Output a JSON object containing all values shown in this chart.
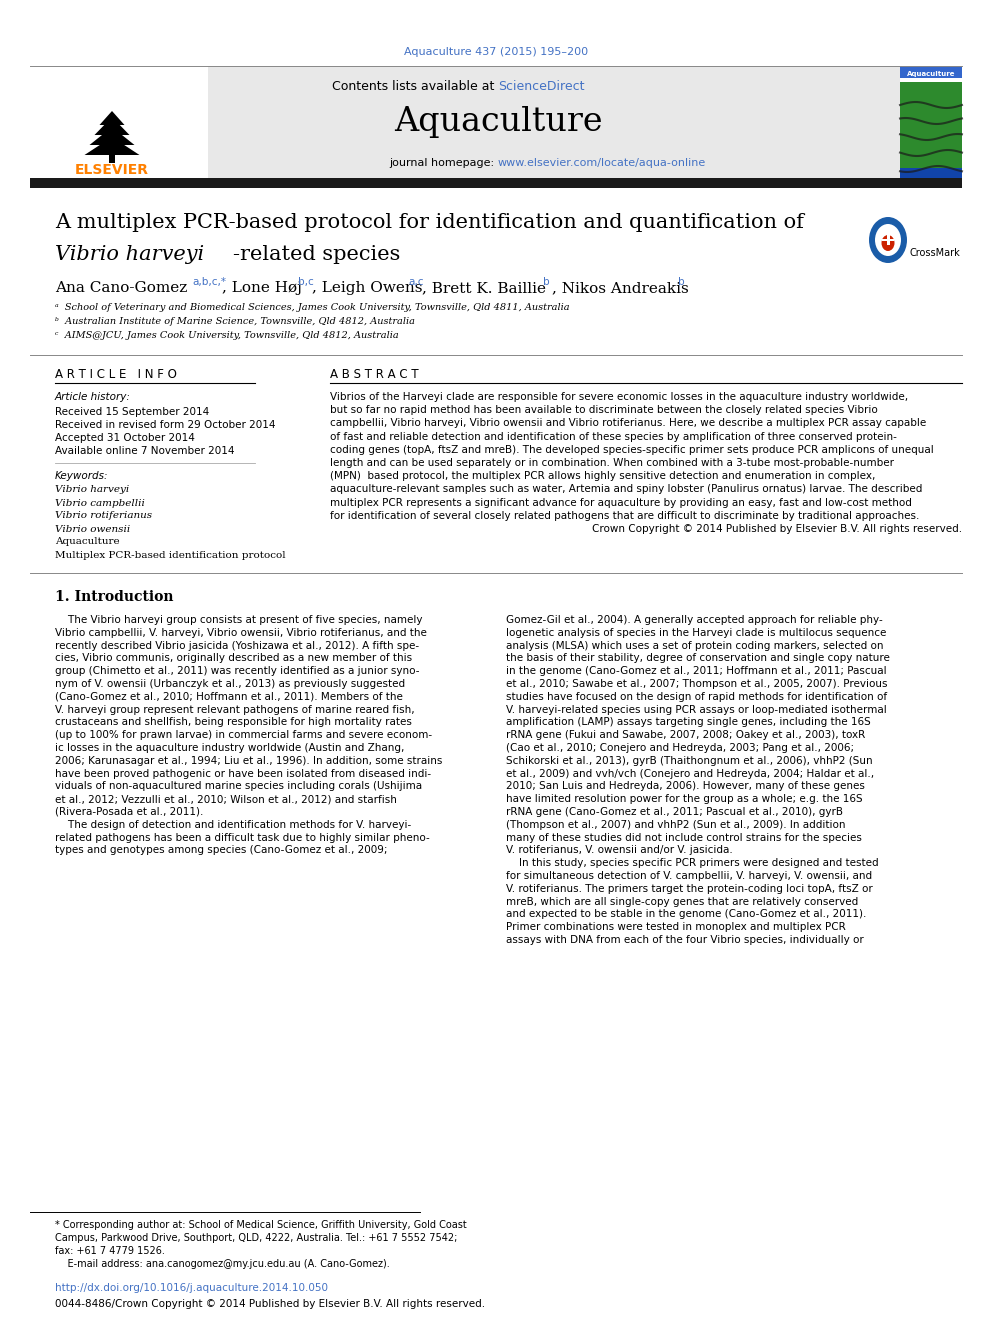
{
  "page_bg": "#ffffff",
  "header_citation": "Aquaculture 437 (2015) 195–200",
  "header_citation_color": "#4472C4",
  "journal_name": "Aquaculture",
  "contents_text": "Contents lists available at ",
  "sciencedirect_text": "ScienceDirect",
  "sciencedirect_color": "#4472C4",
  "journal_homepage_text": "journal homepage: ",
  "journal_url": "www.elsevier.com/locate/aqua-online",
  "journal_url_color": "#4472C4",
  "elsevier_text": "ELSEVIER",
  "elsevier_color": "#FF8000",
  "article_title_line1": "A multiplex PCR-based protocol for identification and quantification of",
  "article_title_line2_italic": "Vibrio harveyi",
  "article_title_line2_rest": "-related species",
  "affil_a": "ᵃ  School of Veterinary and Biomedical Sciences, James Cook University, Townsville, Qld 4811, Australia",
  "affil_b": "ᵇ  Australian Institute of Marine Science, Townsville, Qld 4812, Australia",
  "affil_c": "ᶜ  AIMS@JCU, James Cook University, Townsville, Qld 4812, Australia",
  "article_info_header": "A R T I C L E   I N F O",
  "abstract_header": "A B S T R A C T",
  "article_history_label": "Article history:",
  "received_text": "Received 15 September 2014",
  "revised_text": "Received in revised form 29 October 2014",
  "accepted_text": "Accepted 31 October 2014",
  "online_text": "Available online 7 November 2014",
  "keywords_label": "Keywords:",
  "keywords": [
    "Vibrio harveyi",
    "Vibrio campbellii",
    "Vibrio rotiferianus",
    "Vibrio owensii",
    "Aquaculture",
    "Multiplex PCR-based identification protocol"
  ],
  "keywords_italic": [
    true,
    true,
    true,
    true,
    false,
    false
  ],
  "footer_doi": "http://dx.doi.org/10.1016/j.aquaculture.2014.10.050",
  "footer_doi_color": "#4472C4",
  "footer_issn": "0044-8486/Crown Copyright © 2014 Published by Elsevier B.V. All rights reserved.",
  "link_color": "#4472C4",
  "thick_bar_color": "#1a1a1a",
  "banner_bg": "#e8e8e8",
  "abstract_lines": [
    "Vibrios of the Harveyi clade are responsible for severe economic losses in the aquaculture industry worldwide,",
    "but so far no rapid method has been available to discriminate between the closely related species Vibrio",
    "campbellii, Vibrio harveyi, Vibrio owensii and Vibrio rotiferianus. Here, we describe a multiplex PCR assay capable",
    "of fast and reliable detection and identification of these species by amplification of three conserved protein-",
    "coding genes (topA, ftsZ and mreB). The developed species-specific primer sets produce PCR amplicons of unequal",
    "length and can be used separately or in combination. When combined with a 3-tube most-probable-number",
    "(MPN)  based protocol, the multiplex PCR allows highly sensitive detection and enumeration in complex,",
    "aquaculture-relevant samples such as water, Artemia and spiny lobster (Panulirus ornatus) larvae. The described",
    "multiplex PCR represents a significant advance for aquaculture by providing an easy, fast and low-cost method",
    "for identification of several closely related pathogens that are difficult to discriminate by traditional approaches.",
    "Crown Copyright © 2014 Published by Elsevier B.V. All rights reserved."
  ],
  "col1_lines": [
    "    The Vibrio harveyi group consists at present of five species, namely",
    "Vibrio campbellii, V. harveyi, Vibrio owensii, Vibrio rotiferianus, and the",
    "recently described Vibrio jasicida (Yoshizawa et al., 2012). A fifth spe-",
    "cies, Vibrio communis, originally described as a new member of this",
    "group (Chimetto et al., 2011) was recently identified as a junior syno-",
    "nym of V. owensii (Urbanczyk et al., 2013) as previously suggested",
    "(Cano-Gomez et al., 2010; Hoffmann et al., 2011). Members of the",
    "V. harveyi group represent relevant pathogens of marine reared fish,",
    "crustaceans and shellfish, being responsible for high mortality rates",
    "(up to 100% for prawn larvae) in commercial farms and severe econom-",
    "ic losses in the aquaculture industry worldwide (Austin and Zhang,",
    "2006; Karunasagar et al., 1994; Liu et al., 1996). In addition, some strains",
    "have been proved pathogenic or have been isolated from diseased indi-",
    "viduals of non-aquacultured marine species including corals (Ushijima",
    "et al., 2012; Vezzulli et al., 2010; Wilson et al., 2012) and starfish",
    "(Rivera-Posada et al., 2011).",
    "    The design of detection and identification methods for V. harveyi-",
    "related pathogens has been a difficult task due to highly similar pheno-",
    "types and genotypes among species (Cano-Gomez et al., 2009;"
  ],
  "col2_lines": [
    "Gomez-Gil et al., 2004). A generally accepted approach for reliable phy-",
    "logenetic analysis of species in the Harveyi clade is multilocus sequence",
    "analysis (MLSA) which uses a set of protein coding markers, selected on",
    "the basis of their stability, degree of conservation and single copy nature",
    "in the genome (Cano-Gomez et al., 2011; Hoffmann et al., 2011; Pascual",
    "et al., 2010; Sawabe et al., 2007; Thompson et al., 2005, 2007). Previous",
    "studies have focused on the design of rapid methods for identification of",
    "V. harveyi-related species using PCR assays or loop-mediated isothermal",
    "amplification (LAMP) assays targeting single genes, including the 16S",
    "rRNA gene (Fukui and Sawabe, 2007, 2008; Oakey et al., 2003), toxR",
    "(Cao et al., 2010; Conejero and Hedreyda, 2003; Pang et al., 2006;",
    "Schikorski et al., 2013), gyrB (Thaithongnum et al., 2006), vhhP2 (Sun",
    "et al., 2009) and vvh/vch (Conejero and Hedreyda, 2004; Haldar et al.,",
    "2010; San Luis and Hedreyda, 2006). However, many of these genes",
    "have limited resolution power for the group as a whole; e.g. the 16S",
    "rRNA gene (Cano-Gomez et al., 2011; Pascual et al., 2010), gyrB",
    "(Thompson et al., 2007) and vhhP2 (Sun et al., 2009). In addition",
    "many of these studies did not include control strains for the species",
    "V. rotiferianus, V. owensii and/or V. jasicida.",
    "    In this study, species specific PCR primers were designed and tested",
    "for simultaneous detection of V. campbellii, V. harveyi, V. owensii, and",
    "V. rotiferianus. The primers target the protein-coding loci topA, ftsZ or",
    "mreB, which are all single-copy genes that are relatively conserved",
    "and expected to be stable in the genome (Cano-Gomez et al., 2011).",
    "Primer combinations were tested in monoplex and multiplex PCR",
    "assays with DNA from each of the four Vibrio species, individually or"
  ],
  "footnote_lines": [
    "* Corresponding author at: School of Medical Science, Griffith University, Gold Coast",
    "Campus, Parkwood Drive, Southport, QLD, 4222, Australia. Tel.: +61 7 5552 7542;",
    "fax: +61 7 4779 1526.",
    "    E-mail address: ana.canogomez@my.jcu.edu.au (A. Cano-Gomez)."
  ]
}
